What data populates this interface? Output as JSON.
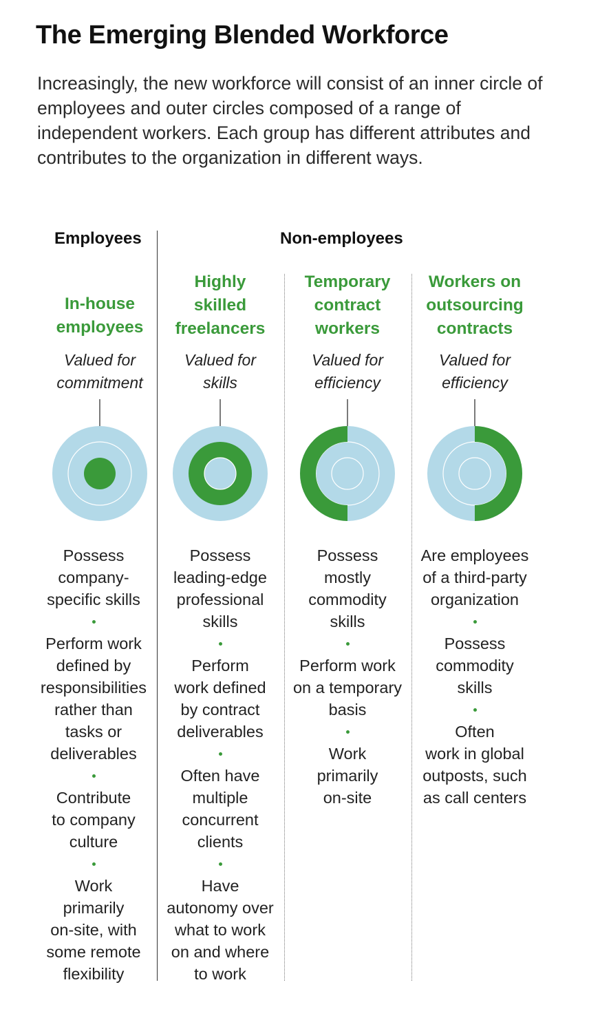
{
  "title": "The Emerging Blended Workforce",
  "intro": "Increasingly, the new workforce will consist of an inner circle of employees and outer circles composed of a range of independent workers. Each group has different attributes and contributes to the organization in different ways.",
  "groups": {
    "employees": "Employees",
    "non_employees": "Non-employees"
  },
  "colors": {
    "accent_green": "#3a9a3a",
    "ring_blue": "#b3d9e8",
    "title_green": "#3a9a3a"
  },
  "columns": [
    {
      "title_lines": [
        "In-house",
        "employees"
      ],
      "valued_lines": [
        "Valued for",
        "commitment"
      ],
      "highlight": "inner-circle",
      "attributes": [
        [
          "Possess",
          "company-",
          "specific skills"
        ],
        [
          "Perform work",
          "defined by",
          "responsibilities",
          "rather than",
          "tasks or",
          "deliverables"
        ],
        [
          "Contribute",
          "to company",
          "culture"
        ],
        [
          "Work",
          "primarily",
          "on-site, with",
          "some remote",
          "flexibility"
        ]
      ]
    },
    {
      "title_lines": [
        "Highly",
        "skilled",
        "freelancers"
      ],
      "valued_lines": [
        "Valued for",
        "skills"
      ],
      "highlight": "middle-ring",
      "attributes": [
        [
          "Possess",
          "leading-edge",
          "professional",
          "skills"
        ],
        [
          "Perform",
          "work defined",
          "by contract",
          "deliverables"
        ],
        [
          "Often have",
          "multiple",
          "concurrent",
          "clients"
        ],
        [
          "Have",
          "autonomy over",
          "what to work",
          "on and where",
          "to work"
        ]
      ]
    },
    {
      "title_lines": [
        "Temporary",
        "contract",
        "workers"
      ],
      "valued_lines": [
        "Valued for",
        "efficiency"
      ],
      "highlight": "outer-ring-left-half",
      "attributes": [
        [
          "Possess",
          "mostly",
          "commodity",
          "skills"
        ],
        [
          "Perform work",
          "on a temporary",
          "basis"
        ],
        [
          "Work",
          "primarily",
          "on-site"
        ]
      ]
    },
    {
      "title_lines": [
        "Workers on",
        "outsourcing",
        "contracts"
      ],
      "valued_lines": [
        "Valued for",
        "efficiency"
      ],
      "highlight": "outer-ring-right-half",
      "attributes": [
        [
          "Are employees",
          "of a third-party",
          "organization"
        ],
        [
          "Possess",
          "commodity",
          "skills"
        ],
        [
          "Often",
          "work in global",
          "outposts, such",
          "as call centers"
        ]
      ]
    }
  ]
}
